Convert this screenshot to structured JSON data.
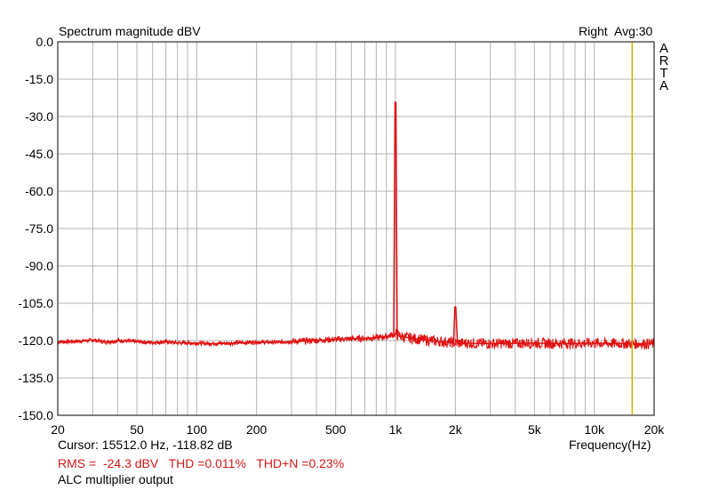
{
  "chart_data": {
    "type": "line",
    "title": "Spectrum magnitude dBV",
    "channel": "Right",
    "averaging": "Avg:30",
    "brand_letters": [
      "A",
      "R",
      "T",
      "A"
    ],
    "xlabel": "Frequency(Hz)",
    "ylabel": "",
    "x_scale": "log",
    "xlim": [
      20,
      20000
    ],
    "ylim": [
      -150,
      0
    ],
    "grid": true,
    "x_ticks": [
      {
        "value": 20,
        "label": "20"
      },
      {
        "value": 50,
        "label": "50"
      },
      {
        "value": 100,
        "label": "100"
      },
      {
        "value": 200,
        "label": "200"
      },
      {
        "value": 500,
        "label": "500"
      },
      {
        "value": 1000,
        "label": "1k"
      },
      {
        "value": 2000,
        "label": "2k"
      },
      {
        "value": 5000,
        "label": "5k"
      },
      {
        "value": 10000,
        "label": "10k"
      },
      {
        "value": 20000,
        "label": "20k"
      }
    ],
    "y_ticks": [
      {
        "value": 0,
        "label": "0.0"
      },
      {
        "value": -15,
        "label": "-15.0"
      },
      {
        "value": -30,
        "label": "-30.0"
      },
      {
        "value": -45,
        "label": "-45.0"
      },
      {
        "value": -60,
        "label": "-60.0"
      },
      {
        "value": -75,
        "label": "-75.0"
      },
      {
        "value": -90,
        "label": "-90.0"
      },
      {
        "value": -105,
        "label": "-105.0"
      },
      {
        "value": -120,
        "label": "-120.0"
      },
      {
        "value": -135,
        "label": "-135.0"
      },
      {
        "value": -150,
        "label": "-150.0"
      }
    ],
    "cursor_frequency": 15512,
    "series": [
      {
        "color": "#e01010",
        "points": [
          [
            20,
            -120.5
          ],
          [
            25,
            -120.3
          ],
          [
            30,
            -119.8
          ],
          [
            35,
            -120.6
          ],
          [
            40,
            -120.0
          ],
          [
            50,
            -120.4
          ],
          [
            60,
            -120.8
          ],
          [
            70,
            -120.5
          ],
          [
            80,
            -120.9
          ],
          [
            100,
            -121.0
          ],
          [
            120,
            -121.2
          ],
          [
            150,
            -121.0
          ],
          [
            200,
            -120.6
          ],
          [
            250,
            -120.7
          ],
          [
            300,
            -120.4
          ],
          [
            400,
            -119.9
          ],
          [
            500,
            -119.5
          ],
          [
            600,
            -119.3
          ],
          [
            700,
            -119.1
          ],
          [
            800,
            -118.8
          ],
          [
            900,
            -118.4
          ],
          [
            980,
            -117.5
          ],
          [
            995,
            -24.3
          ],
          [
            1005,
            -24.3
          ],
          [
            1020,
            -117.8
          ],
          [
            1100,
            -118.6
          ],
          [
            1200,
            -119.0
          ],
          [
            1400,
            -119.7
          ],
          [
            1600,
            -120.2
          ],
          [
            1800,
            -120.6
          ],
          [
            1960,
            -120.9
          ],
          [
            1990,
            -106.5
          ],
          [
            2010,
            -106.5
          ],
          [
            2050,
            -121.0
          ],
          [
            2500,
            -121.1
          ],
          [
            3000,
            -121.2
          ],
          [
            4000,
            -121.1
          ],
          [
            5000,
            -121.0
          ],
          [
            6000,
            -121.1
          ],
          [
            8000,
            -121.1
          ],
          [
            10000,
            -121.0
          ],
          [
            12000,
            -121.1
          ],
          [
            15000,
            -121.2
          ],
          [
            20000,
            -121.3
          ]
        ]
      }
    ]
  },
  "status": {
    "cursor": "Cursor: 15512.0 Hz, -118.82 dB",
    "measurements": "RMS =  -24.3 dBV   THD =0.011%   THD+N =0.23%",
    "description": "ALC multiplier output"
  },
  "colors": {
    "trace": "#e01010",
    "cursor": "#c8b400",
    "grid": "#b4b4b4",
    "measurement_text": "#d01818"
  }
}
